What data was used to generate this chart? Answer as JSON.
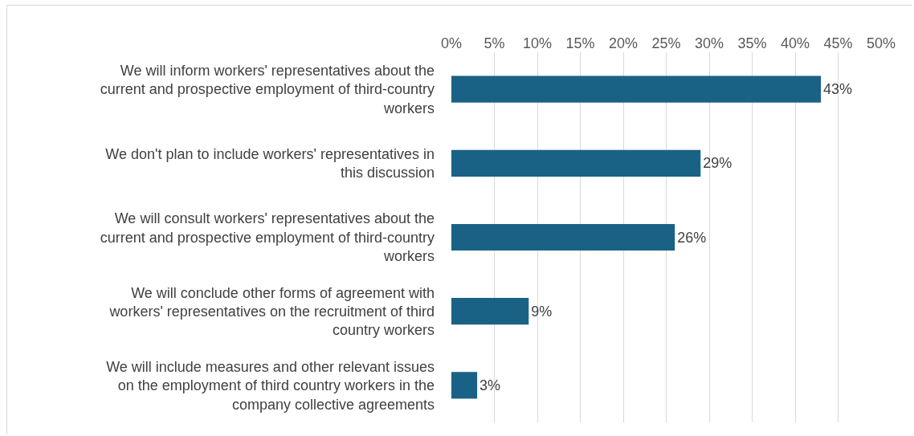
{
  "chart_data": {
    "type": "bar",
    "orientation": "horizontal",
    "categories": [
      "We will inform workers' representatives about the current and prospective employment of third-country workers",
      "We don't plan to include workers' representatives in this discussion",
      "We will consult workers' representatives about the current and prospective employment of third-country workers",
      "We will conclude other forms of agreement with workers' representatives on the recruitment of third country workers",
      "We will include measures and other relevant issues on the employment of third country workers in the company collective agreements"
    ],
    "values": [
      43,
      29,
      26,
      9,
      3
    ],
    "color": "#1a6285",
    "value_labels": [
      "43%",
      "29%",
      "26%",
      "9%",
      "3%"
    ],
    "xlim": [
      0,
      50
    ],
    "xticks": [
      {
        "value": 0,
        "label": "0%"
      },
      {
        "value": 5,
        "label": "5%"
      },
      {
        "value": 10,
        "label": "10%"
      },
      {
        "value": 15,
        "label": "15%"
      },
      {
        "value": 20,
        "label": "20%"
      },
      {
        "value": 25,
        "label": "25%"
      },
      {
        "value": 30,
        "label": "30%"
      },
      {
        "value": 35,
        "label": "35%"
      },
      {
        "value": 40,
        "label": "40%"
      },
      {
        "value": 45,
        "label": "45%"
      },
      {
        "value": 50,
        "label": "50%"
      }
    ],
    "grid": "x",
    "legend": false
  }
}
